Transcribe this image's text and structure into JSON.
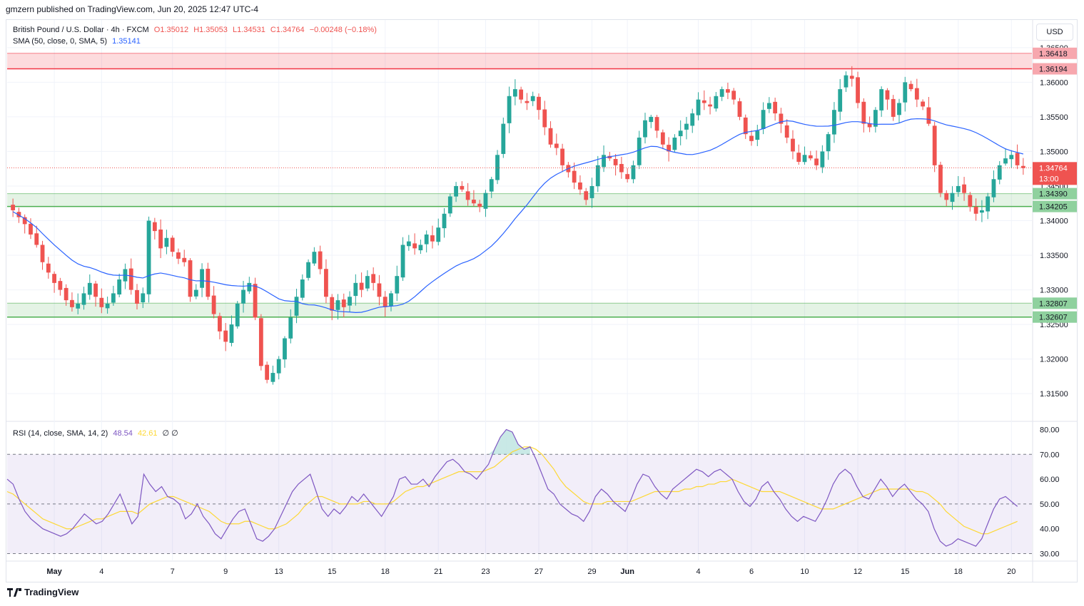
{
  "header": {
    "publish_line": "gmzern published on TradingView.com, Jun 20, 2025 12:47 UTC-4"
  },
  "legend": {
    "symbol": "British Pound / U.S. Dollar · 4h · FXCM",
    "open": "O1.35012",
    "high": "H1.35053",
    "low": "L1.34531",
    "close": "C1.34764",
    "change": "−0.00248 (−0.18%)",
    "sma_label": "SMA (50, close, 0, SMA, 5)",
    "sma_value": "1.35141",
    "rsi_label": "RSI (14, close, SMA, 14, 2)",
    "rsi_value": "48.54",
    "rsi_ma_value": "42.61",
    "rsi_extra": "∅ ∅"
  },
  "currency_button": "USD",
  "footer": {
    "brand": "TradingView"
  },
  "colors": {
    "up": "#26a69a",
    "down": "#ef5350",
    "sma": "#2962ff",
    "rsi": "#7e57c2",
    "rsi_ma": "#fdd835",
    "resistance": "#f23645",
    "support": "#4caf50"
  },
  "chart_data": [
    {
      "type": "candlestick",
      "title": "British Pound / U.S. Dollar · 4h · FXCM",
      "ylim": [
        1.311,
        1.369
      ],
      "y_ticks": [
        "1.31500",
        "1.32000",
        "1.32500",
        "1.33000",
        "1.33500",
        "1.34000",
        "1.34500",
        "1.35000",
        "1.35500",
        "1.36000",
        "1.36500"
      ],
      "x_ticks": [
        "May",
        "4",
        "7",
        "9",
        "13",
        "15",
        "18",
        "21",
        "23",
        "27",
        "29",
        "Jun",
        "4",
        "6",
        "10",
        "12",
        "15",
        "18",
        "20"
      ],
      "x_tick_index": [
        7,
        15,
        27,
        36,
        45,
        54,
        63,
        72,
        80,
        89,
        98,
        104,
        116,
        125,
        134,
        143,
        151,
        160,
        169
      ],
      "last_price": "1.34764",
      "countdown": "13:00",
      "zones": [
        {
          "kind": "resistance",
          "top": 1.36418,
          "bottom": 1.36194,
          "labels": [
            "1.36418",
            "1.36194"
          ]
        },
        {
          "kind": "support",
          "top": 1.3439,
          "bottom": 1.34205,
          "labels": [
            "1.34390",
            "1.34205"
          ]
        },
        {
          "kind": "support",
          "top": 1.32807,
          "bottom": 1.32607,
          "labels": [
            "1.32807",
            "1.32607"
          ]
        }
      ],
      "price_labels": [
        {
          "value": 1.36418,
          "text": "1.36418",
          "kind": "resistance"
        },
        {
          "value": 1.36194,
          "text": "1.36194",
          "kind": "resistance"
        },
        {
          "value": 1.34764,
          "text": "1.34764",
          "kind": "last"
        },
        {
          "value": 1.3439,
          "text": "1.34390",
          "kind": "support"
        },
        {
          "value": 1.34205,
          "text": "1.34205",
          "kind": "support"
        },
        {
          "value": 1.32807,
          "text": "1.32807",
          "kind": "support"
        },
        {
          "value": 1.32607,
          "text": "1.32607",
          "kind": "support"
        }
      ],
      "close_series": [
        1.3415,
        1.3405,
        1.3395,
        1.338,
        1.3365,
        1.334,
        1.3325,
        1.331,
        1.33,
        1.3285,
        1.3275,
        1.328,
        1.3295,
        1.331,
        1.329,
        1.3275,
        1.328,
        1.3295,
        1.3315,
        1.333,
        1.33,
        1.328,
        1.3295,
        1.34,
        1.3385,
        1.336,
        1.3375,
        1.3355,
        1.3345,
        1.334,
        1.329,
        1.33,
        1.333,
        1.329,
        1.3265,
        1.324,
        1.3225,
        1.325,
        1.328,
        1.33,
        1.331,
        1.326,
        1.319,
        1.317,
        1.318,
        1.32,
        1.323,
        1.326,
        1.329,
        1.3315,
        1.334,
        1.3355,
        1.333,
        1.329,
        1.327,
        1.3285,
        1.3275,
        1.329,
        1.331,
        1.33,
        1.332,
        1.331,
        1.329,
        1.3275,
        1.3295,
        1.332,
        1.3365,
        1.337,
        1.336,
        1.3365,
        1.338,
        1.337,
        1.339,
        1.341,
        1.3435,
        1.345,
        1.3445,
        1.343,
        1.3425,
        1.342,
        1.344,
        1.346,
        1.3495,
        1.354,
        1.358,
        1.359,
        1.3575,
        1.357,
        1.358,
        1.356,
        1.3535,
        1.351,
        1.3505,
        1.348,
        1.347,
        1.3455,
        1.3445,
        1.343,
        1.345,
        1.348,
        1.3495,
        1.349,
        1.348,
        1.347,
        1.346,
        1.348,
        1.352,
        1.3545,
        1.355,
        1.353,
        1.351,
        1.35,
        1.352,
        1.353,
        1.354,
        1.3555,
        1.3575,
        1.357,
        1.3565,
        1.358,
        1.359,
        1.3585,
        1.3575,
        1.355,
        1.3525,
        1.3515,
        1.353,
        1.356,
        1.357,
        1.3555,
        1.354,
        1.352,
        1.35,
        1.3485,
        1.3495,
        1.349,
        1.348,
        1.35,
        1.3525,
        1.356,
        1.359,
        1.361,
        1.3605,
        1.357,
        1.354,
        1.3535,
        1.356,
        1.359,
        1.3575,
        1.355,
        1.357,
        1.36,
        1.359,
        1.3575,
        1.3565,
        1.354,
        1.348,
        1.344,
        1.343,
        1.344,
        1.345,
        1.344,
        1.342,
        1.341,
        1.3415,
        1.3435,
        1.346,
        1.348,
        1.349,
        1.3495,
        1.348,
        1.3476
      ],
      "sma": {
        "name": "SMA (50, close, 0, SMA, 5)",
        "start": [
          1.3345,
          1.333,
          1.3305,
          1.329,
          1.3285,
          1.33,
          1.3335,
          1.3405,
          1.3455,
          1.349,
          1.351,
          1.3525,
          1.354,
          1.355,
          1.3558,
          1.356,
          1.354,
          1.3514
        ]
      }
    },
    {
      "type": "line",
      "title": "RSI (14, close, SMA, 14, 2)",
      "ylim": [
        27,
        83
      ],
      "y_ticks": [
        "30.00",
        "40.00",
        "50.00",
        "60.00",
        "70.00",
        "80.00"
      ],
      "bands": [
        30,
        50,
        70
      ],
      "series": [
        {
          "name": "RSI",
          "values": [
            60,
            58,
            52,
            47,
            44,
            42,
            40,
            39,
            38,
            37,
            38,
            40,
            43,
            46,
            44,
            42,
            43,
            46,
            50,
            54,
            48,
            42,
            45,
            62,
            58,
            55,
            57,
            53,
            52,
            50,
            44,
            46,
            50,
            45,
            42,
            38,
            36,
            40,
            44,
            47,
            48,
            42,
            36,
            35,
            37,
            40,
            45,
            50,
            55,
            58,
            60,
            62,
            55,
            48,
            45,
            48,
            46,
            49,
            53,
            51,
            54,
            51,
            48,
            45,
            49,
            53,
            60,
            61,
            58,
            58,
            60,
            57,
            61,
            64,
            67,
            68,
            66,
            63,
            62,
            60,
            63,
            66,
            72,
            77,
            80,
            79,
            74,
            72,
            73,
            68,
            62,
            56,
            54,
            50,
            48,
            46,
            45,
            43,
            47,
            53,
            56,
            54,
            51,
            49,
            47,
            52,
            58,
            62,
            61,
            57,
            54,
            52,
            56,
            58,
            60,
            62,
            64,
            63,
            61,
            63,
            64,
            62,
            60,
            55,
            51,
            49,
            52,
            57,
            59,
            55,
            52,
            48,
            45,
            43,
            45,
            44,
            43,
            47,
            52,
            58,
            62,
            64,
            62,
            57,
            53,
            52,
            56,
            60,
            57,
            53,
            56,
            58,
            55,
            52,
            50,
            47,
            40,
            35,
            33,
            34,
            36,
            35,
            34,
            33,
            36,
            42,
            48,
            52,
            53,
            51,
            49
          ]
        },
        {
          "name": "RSI MA",
          "values": [
            55,
            54,
            52,
            50,
            48,
            46,
            44,
            43,
            42,
            41,
            40,
            40,
            41,
            42,
            43,
            44,
            44,
            45,
            46,
            47,
            47,
            47,
            46,
            48,
            50,
            51,
            52,
            53,
            53,
            52,
            51,
            50,
            49,
            48,
            47,
            45,
            43,
            42,
            42,
            42,
            43,
            43,
            42,
            41,
            40,
            40,
            41,
            42,
            44,
            46,
            49,
            51,
            53,
            53,
            52,
            51,
            50,
            50,
            50,
            50,
            51,
            51,
            50,
            50,
            50,
            51,
            53,
            55,
            56,
            57,
            57,
            58,
            59,
            60,
            61,
            62,
            63,
            63,
            63,
            63,
            63,
            64,
            65,
            67,
            69,
            71,
            72,
            73,
            73,
            72,
            70,
            67,
            64,
            60,
            57,
            55,
            53,
            51,
            50,
            50,
            50,
            51,
            51,
            51,
            51,
            51,
            52,
            53,
            54,
            55,
            55,
            55,
            55,
            55,
            56,
            56,
            57,
            57,
            58,
            58,
            59,
            59,
            60,
            59,
            58,
            57,
            56,
            55,
            55,
            55,
            55,
            54,
            53,
            52,
            51,
            50,
            49,
            48,
            48,
            48,
            49,
            50,
            51,
            52,
            53,
            54,
            55,
            56,
            56,
            56,
            56,
            56,
            56,
            55,
            55,
            54,
            52,
            50,
            47,
            45,
            43,
            41,
            40,
            39,
            38,
            38,
            39,
            40,
            41,
            42,
            43
          ]
        }
      ]
    }
  ]
}
